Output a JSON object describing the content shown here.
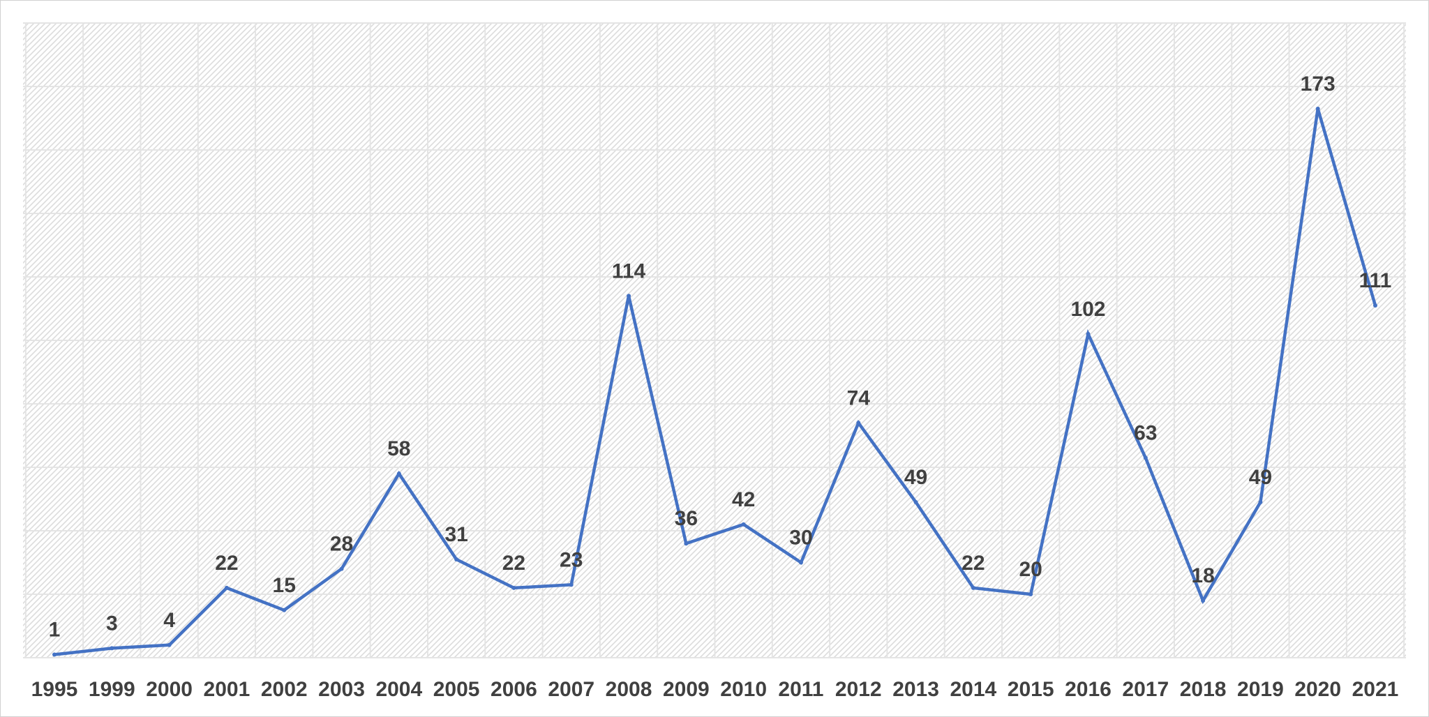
{
  "chart_data": {
    "type": "line",
    "title": "",
    "xlabel": "",
    "ylabel": "",
    "categories": [
      "1995",
      "1999",
      "2000",
      "2001",
      "2002",
      "2003",
      "2004",
      "2005",
      "2006",
      "2007",
      "2008",
      "2009",
      "2010",
      "2011",
      "2012",
      "2013",
      "2014",
      "2015",
      "2016",
      "2017",
      "2018",
      "2019",
      "2020",
      "2021"
    ],
    "series": [
      {
        "values": [
          1,
          3,
          4,
          22,
          15,
          28,
          58,
          31,
          22,
          23,
          114,
          36,
          42,
          30,
          74,
          49,
          22,
          20,
          102,
          63,
          18,
          49,
          173,
          111
        ]
      }
    ],
    "ylim": [
      0,
      200
    ],
    "ygrid_step": 20,
    "grid": true,
    "data_labels": true,
    "legend": "none",
    "line_color": "#4472C4",
    "label_color": "#404040",
    "background": "diagonal-hatch"
  }
}
